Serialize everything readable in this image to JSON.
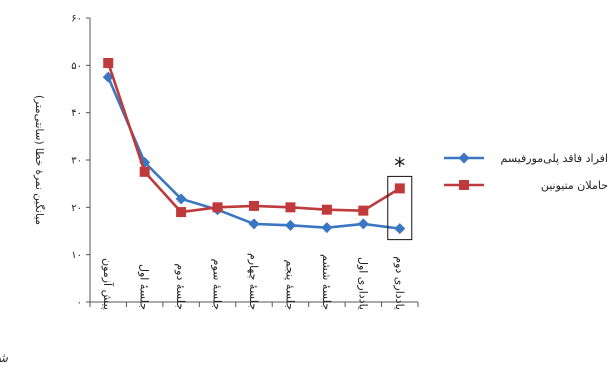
{
  "chart_data": {
    "type": "line",
    "ylabel": "میانگین نمرهٔ خطا (سانتی‌متر)",
    "ylim": [
      0,
      60
    ],
    "yticks": [
      "۰",
      "۱۰",
      "۲۰",
      "۳۰",
      "۴۰",
      "۵۰",
      "۶۰"
    ],
    "categories": [
      "پیش آزمون",
      "جلسهٔ اول",
      "جلسهٔ دوم",
      "جلسهٔ سوم",
      "جلسهٔ چهارم",
      "جلسهٔ پنجم",
      "جلسهٔ ششم",
      "یادداری اول",
      "یادداری دوم"
    ],
    "series": [
      {
        "name": "افراد فاقد پلی‌مورفیسم",
        "color": "#3a76c2",
        "marker": "diamond",
        "values": [
          47.5,
          29.5,
          21.8,
          19.5,
          16.5,
          16.2,
          15.7,
          16.5,
          15.5
        ]
      },
      {
        "name": "حاملان متیونین",
        "color": "#c0393b",
        "marker": "square",
        "values": [
          50.5,
          27.5,
          19.0,
          20.0,
          20.3,
          20.0,
          19.5,
          19.3,
          24.0
        ]
      }
    ],
    "annotation": "*",
    "highlight_category_index": 8,
    "legend_position": "right"
  },
  "logo_text": "شفاء ختم"
}
